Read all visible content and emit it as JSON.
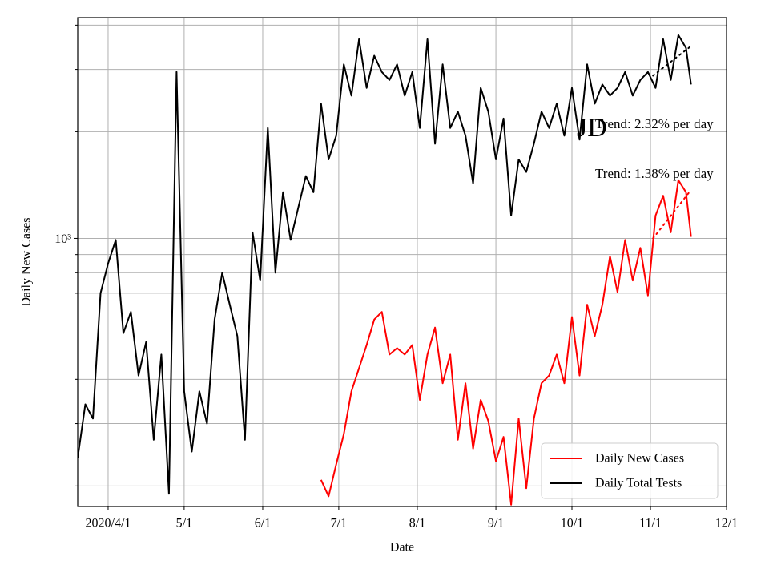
{
  "chart_data": {
    "type": "line",
    "xlabel": "Date",
    "ylabel": "Daily New Cases",
    "log_y": true,
    "grid": true,
    "legend": "lower right",
    "xlim": [
      "2020-03-20",
      "2020-12-01"
    ],
    "xticks": [
      {
        "value": "2020-04-01",
        "label": "2020/4/1"
      },
      {
        "value": "2020-05-01",
        "label": "5/1"
      },
      {
        "value": "2020-06-01",
        "label": "6/1"
      },
      {
        "value": "2020-07-01",
        "label": "7/1"
      },
      {
        "value": "2020-08-01",
        "label": "8/1"
      },
      {
        "value": "2020-09-01",
        "label": "9/1"
      },
      {
        "value": "2020-10-01",
        "label": "10/1"
      },
      {
        "value": "2020-11-01",
        "label": "11/1"
      },
      {
        "value": "2020-12-01",
        "label": "12/1"
      }
    ],
    "ylim": [
      175,
      4200
    ],
    "yticks": [
      {
        "value": 1000,
        "label": "10³"
      }
    ],
    "yminorticks": [
      200,
      300,
      400,
      500,
      600,
      700,
      800,
      900,
      2000,
      3000,
      4000
    ],
    "x": [
      "2020-03-20",
      "2020-03-23",
      "2020-03-26",
      "2020-03-29",
      "2020-04-01",
      "2020-04-04",
      "2020-04-07",
      "2020-04-10",
      "2020-04-13",
      "2020-04-16",
      "2020-04-19",
      "2020-04-22",
      "2020-04-25",
      "2020-04-28",
      "2020-05-01",
      "2020-05-04",
      "2020-05-07",
      "2020-05-10",
      "2020-05-13",
      "2020-05-16",
      "2020-05-19",
      "2020-05-22",
      "2020-05-25",
      "2020-05-28",
      "2020-05-31",
      "2020-06-03",
      "2020-06-06",
      "2020-06-09",
      "2020-06-12",
      "2020-06-15",
      "2020-06-18",
      "2020-06-21",
      "2020-06-24",
      "2020-06-27",
      "2020-06-30",
      "2020-07-03",
      "2020-07-06",
      "2020-07-09",
      "2020-07-12",
      "2020-07-15",
      "2020-07-18",
      "2020-07-21",
      "2020-07-24",
      "2020-07-27",
      "2020-07-30",
      "2020-08-02",
      "2020-08-05",
      "2020-08-08",
      "2020-08-11",
      "2020-08-14",
      "2020-08-17",
      "2020-08-20",
      "2020-08-23",
      "2020-08-26",
      "2020-08-29",
      "2020-09-01",
      "2020-09-04",
      "2020-09-07",
      "2020-09-10",
      "2020-09-13",
      "2020-09-16",
      "2020-09-19",
      "2020-09-22",
      "2020-09-25",
      "2020-09-28",
      "2020-10-01",
      "2020-10-04",
      "2020-10-07",
      "2020-10-10",
      "2020-10-13",
      "2020-10-16",
      "2020-10-19",
      "2020-10-22",
      "2020-10-25",
      "2020-10-28",
      "2020-10-31",
      "2020-11-03",
      "2020-11-06",
      "2020-11-09",
      "2020-11-12",
      "2020-11-15",
      "2020-11-17"
    ],
    "series": [
      {
        "name": "Daily New Cases",
        "color": "#ff0000",
        "values": [
          null,
          null,
          null,
          null,
          null,
          null,
          null,
          null,
          null,
          null,
          null,
          null,
          null,
          null,
          null,
          null,
          null,
          null,
          null,
          null,
          null,
          null,
          null,
          null,
          null,
          null,
          null,
          null,
          null,
          null,
          null,
          null,
          208,
          187,
          230,
          280,
          370,
          430,
          500,
          590,
          620,
          470,
          490,
          470,
          500,
          350,
          470,
          560,
          390,
          470,
          270,
          390,
          255,
          350,
          305,
          235,
          275,
          177,
          310,
          197,
          310,
          390,
          410,
          470,
          390,
          600,
          410,
          650,
          530,
          650,
          890,
          705,
          990,
          760,
          940,
          690,
          1160,
          1320,
          1040,
          1460,
          1350,
          1010
        ]
      },
      {
        "name": "Daily Total Tests",
        "color": "#000000",
        "values": [
          240,
          340,
          310,
          700,
          850,
          990,
          540,
          620,
          410,
          510,
          270,
          470,
          190,
          2950,
          370,
          250,
          370,
          300,
          590,
          800,
          650,
          530,
          270,
          1040,
          760,
          2050,
          800,
          1350,
          990,
          1220,
          1500,
          1350,
          2400,
          1670,
          1950,
          3100,
          2530,
          3650,
          2660,
          3280,
          2950,
          2800,
          3100,
          2530,
          2950,
          2050,
          3650,
          1850,
          3100,
          2050,
          2280,
          1950,
          1430,
          2660,
          2280,
          1670,
          2180,
          1160,
          1670,
          1540,
          1850,
          2280,
          2050,
          2400,
          1950,
          2660,
          1900,
          3100,
          2400,
          2720,
          2530,
          2660,
          2950,
          2530,
          2800,
          2950,
          2660,
          3650,
          2800,
          3750,
          3450,
          2720
        ]
      }
    ],
    "trend_lines": [
      {
        "color": "#ff0000",
        "x": [
          "2020-11-02",
          "2020-11-17"
        ],
        "values": [
          1000,
          1370
        ]
      },
      {
        "color": "#000000",
        "x": [
          "2020-11-02",
          "2020-11-17"
        ],
        "values": [
          2880,
          3490
        ]
      }
    ],
    "annotations": [
      "JD",
      "Trend: 2.32% per day",
      "Trend: 1.38% per day"
    ]
  }
}
